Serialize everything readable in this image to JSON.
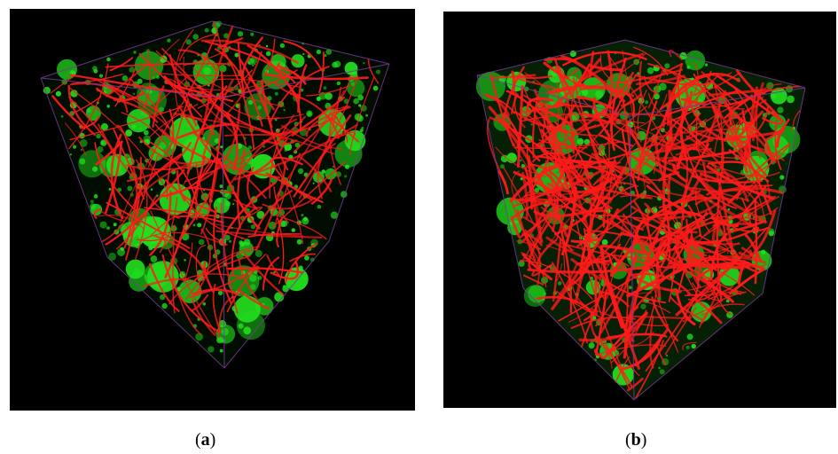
{
  "figure": {
    "panels": [
      {
        "id": "a",
        "open": "(",
        "letter": "a",
        "close": ")"
      },
      {
        "id": "b",
        "open": "(",
        "letter": "b",
        "close": ")"
      }
    ],
    "colors": {
      "background": "#000000",
      "fiber": "#ff1a1a",
      "particle": "#22e01e",
      "box_edge": "#7a3a9a"
    }
  }
}
